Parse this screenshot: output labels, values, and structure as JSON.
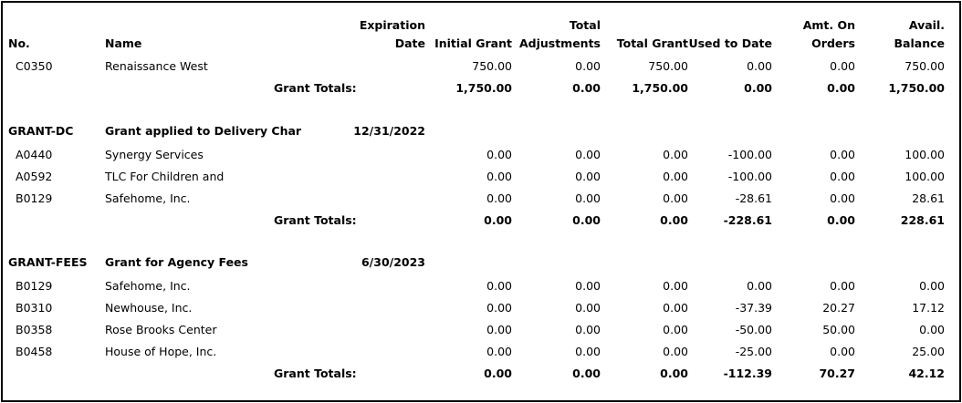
{
  "columns": {
    "no": "No.",
    "name": "Name",
    "expiration_1": "Expiration",
    "expiration_2": "Date",
    "initial_grant": "Initial Grant",
    "total_adj_1": "Total",
    "total_adj_2": "Adjustments",
    "total_grant": "Total Grant",
    "used_to_date": "Used to Date",
    "amt_orders_1": "Amt. On",
    "amt_orders_2": "Orders",
    "avail_1": "Avail.",
    "avail_2": "Balance"
  },
  "totals_label": "Grant Totals:",
  "top_rows": [
    {
      "no": "C0350",
      "name": "Renaissance West",
      "initial": "750.00",
      "adj": "0.00",
      "total": "750.00",
      "used": "0.00",
      "orders": "0.00",
      "avail": "750.00"
    }
  ],
  "top_totals": {
    "initial": "1,750.00",
    "adj": "0.00",
    "total": "1,750.00",
    "used": "0.00",
    "orders": "0.00",
    "avail": "1,750.00"
  },
  "groups": [
    {
      "code": "GRANT-DC",
      "name": "Grant applied to Delivery Char",
      "date": "12/31/2022",
      "rows": [
        {
          "no": "A0440",
          "name": "Synergy Services",
          "initial": "0.00",
          "adj": "0.00",
          "total": "0.00",
          "used": "-100.00",
          "orders": "0.00",
          "avail": "100.00"
        },
        {
          "no": "A0592",
          "name": "TLC For Children and",
          "initial": "0.00",
          "adj": "0.00",
          "total": "0.00",
          "used": "-100.00",
          "orders": "0.00",
          "avail": "100.00"
        },
        {
          "no": "B0129",
          "name": "Safehome, Inc.",
          "initial": "0.00",
          "adj": "0.00",
          "total": "0.00",
          "used": "-28.61",
          "orders": "0.00",
          "avail": "28.61"
        }
      ],
      "totals": {
        "initial": "0.00",
        "adj": "0.00",
        "total": "0.00",
        "used": "-228.61",
        "orders": "0.00",
        "avail": "228.61"
      }
    },
    {
      "code": "GRANT-FEES",
      "name": "Grant for Agency Fees",
      "date": "6/30/2023",
      "rows": [
        {
          "no": "B0129",
          "name": "Safehome, Inc.",
          "initial": "0.00",
          "adj": "0.00",
          "total": "0.00",
          "used": "0.00",
          "orders": "0.00",
          "avail": "0.00"
        },
        {
          "no": "B0310",
          "name": "Newhouse, Inc.",
          "initial": "0.00",
          "adj": "0.00",
          "total": "0.00",
          "used": "-37.39",
          "orders": "20.27",
          "avail": "17.12"
        },
        {
          "no": "B0358",
          "name": "Rose Brooks Center",
          "initial": "0.00",
          "adj": "0.00",
          "total": "0.00",
          "used": "-50.00",
          "orders": "50.00",
          "avail": "0.00"
        },
        {
          "no": "B0458",
          "name": "House of Hope, Inc.",
          "initial": "0.00",
          "adj": "0.00",
          "total": "0.00",
          "used": "-25.00",
          "orders": "0.00",
          "avail": "25.00"
        }
      ],
      "totals": {
        "initial": "0.00",
        "adj": "0.00",
        "total": "0.00",
        "used": "-112.39",
        "orders": "70.27",
        "avail": "42.12"
      }
    }
  ]
}
